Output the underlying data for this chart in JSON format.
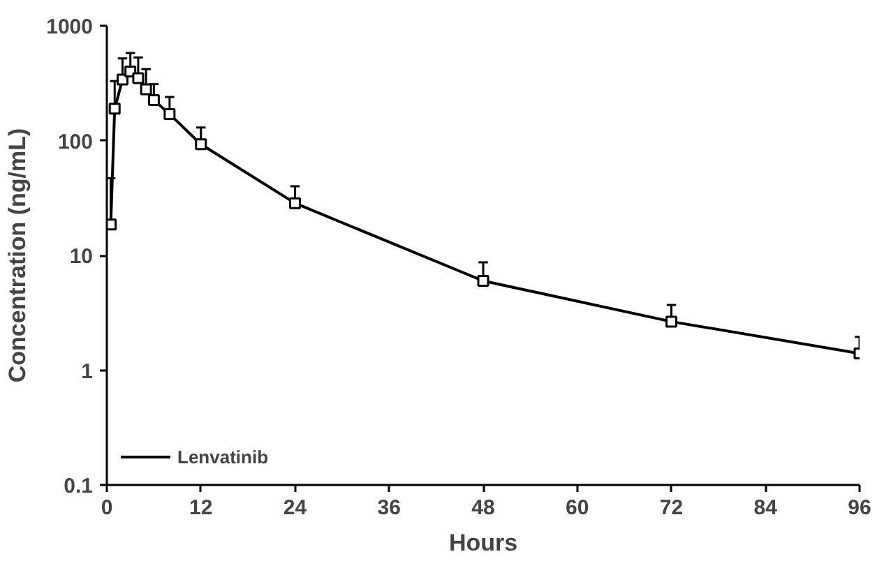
{
  "chart_data": {
    "type": "line",
    "xlabel": "Hours",
    "ylabel": "Concentration (ng/mL)",
    "x": [
      0.5,
      1,
      2,
      3,
      4,
      5,
      6,
      8,
      12,
      24,
      48,
      72,
      96
    ],
    "series": [
      {
        "name": "Lenvatinib",
        "color": "#000000",
        "values": [
          18.6,
          190,
          340,
          400,
          350,
          280,
          225,
          170,
          93,
          28.5,
          6.0,
          2.65,
          1.4
        ],
        "errors": [
          [
            18.6,
            47
          ],
          [
            190,
            330
          ],
          [
            340,
            520
          ],
          [
            400,
            580
          ],
          [
            350,
            530
          ],
          [
            280,
            420
          ],
          [
            225,
            310
          ],
          [
            170,
            240
          ],
          [
            93,
            130
          ],
          [
            28.5,
            40
          ],
          [
            6.0,
            8.7
          ],
          [
            2.65,
            3.7
          ],
          [
            1.4,
            1.95
          ]
        ]
      }
    ],
    "xlim": [
      0,
      96
    ],
    "xticks": [
      0,
      12,
      24,
      36,
      48,
      60,
      72,
      84,
      96
    ],
    "ylim": [
      0.1,
      1000
    ],
    "yticks": [
      0.1,
      1,
      10,
      100,
      1000
    ],
    "log": "y",
    "grid": false,
    "legend": "bottom left",
    "marker": "square",
    "line_style": "solid"
  }
}
